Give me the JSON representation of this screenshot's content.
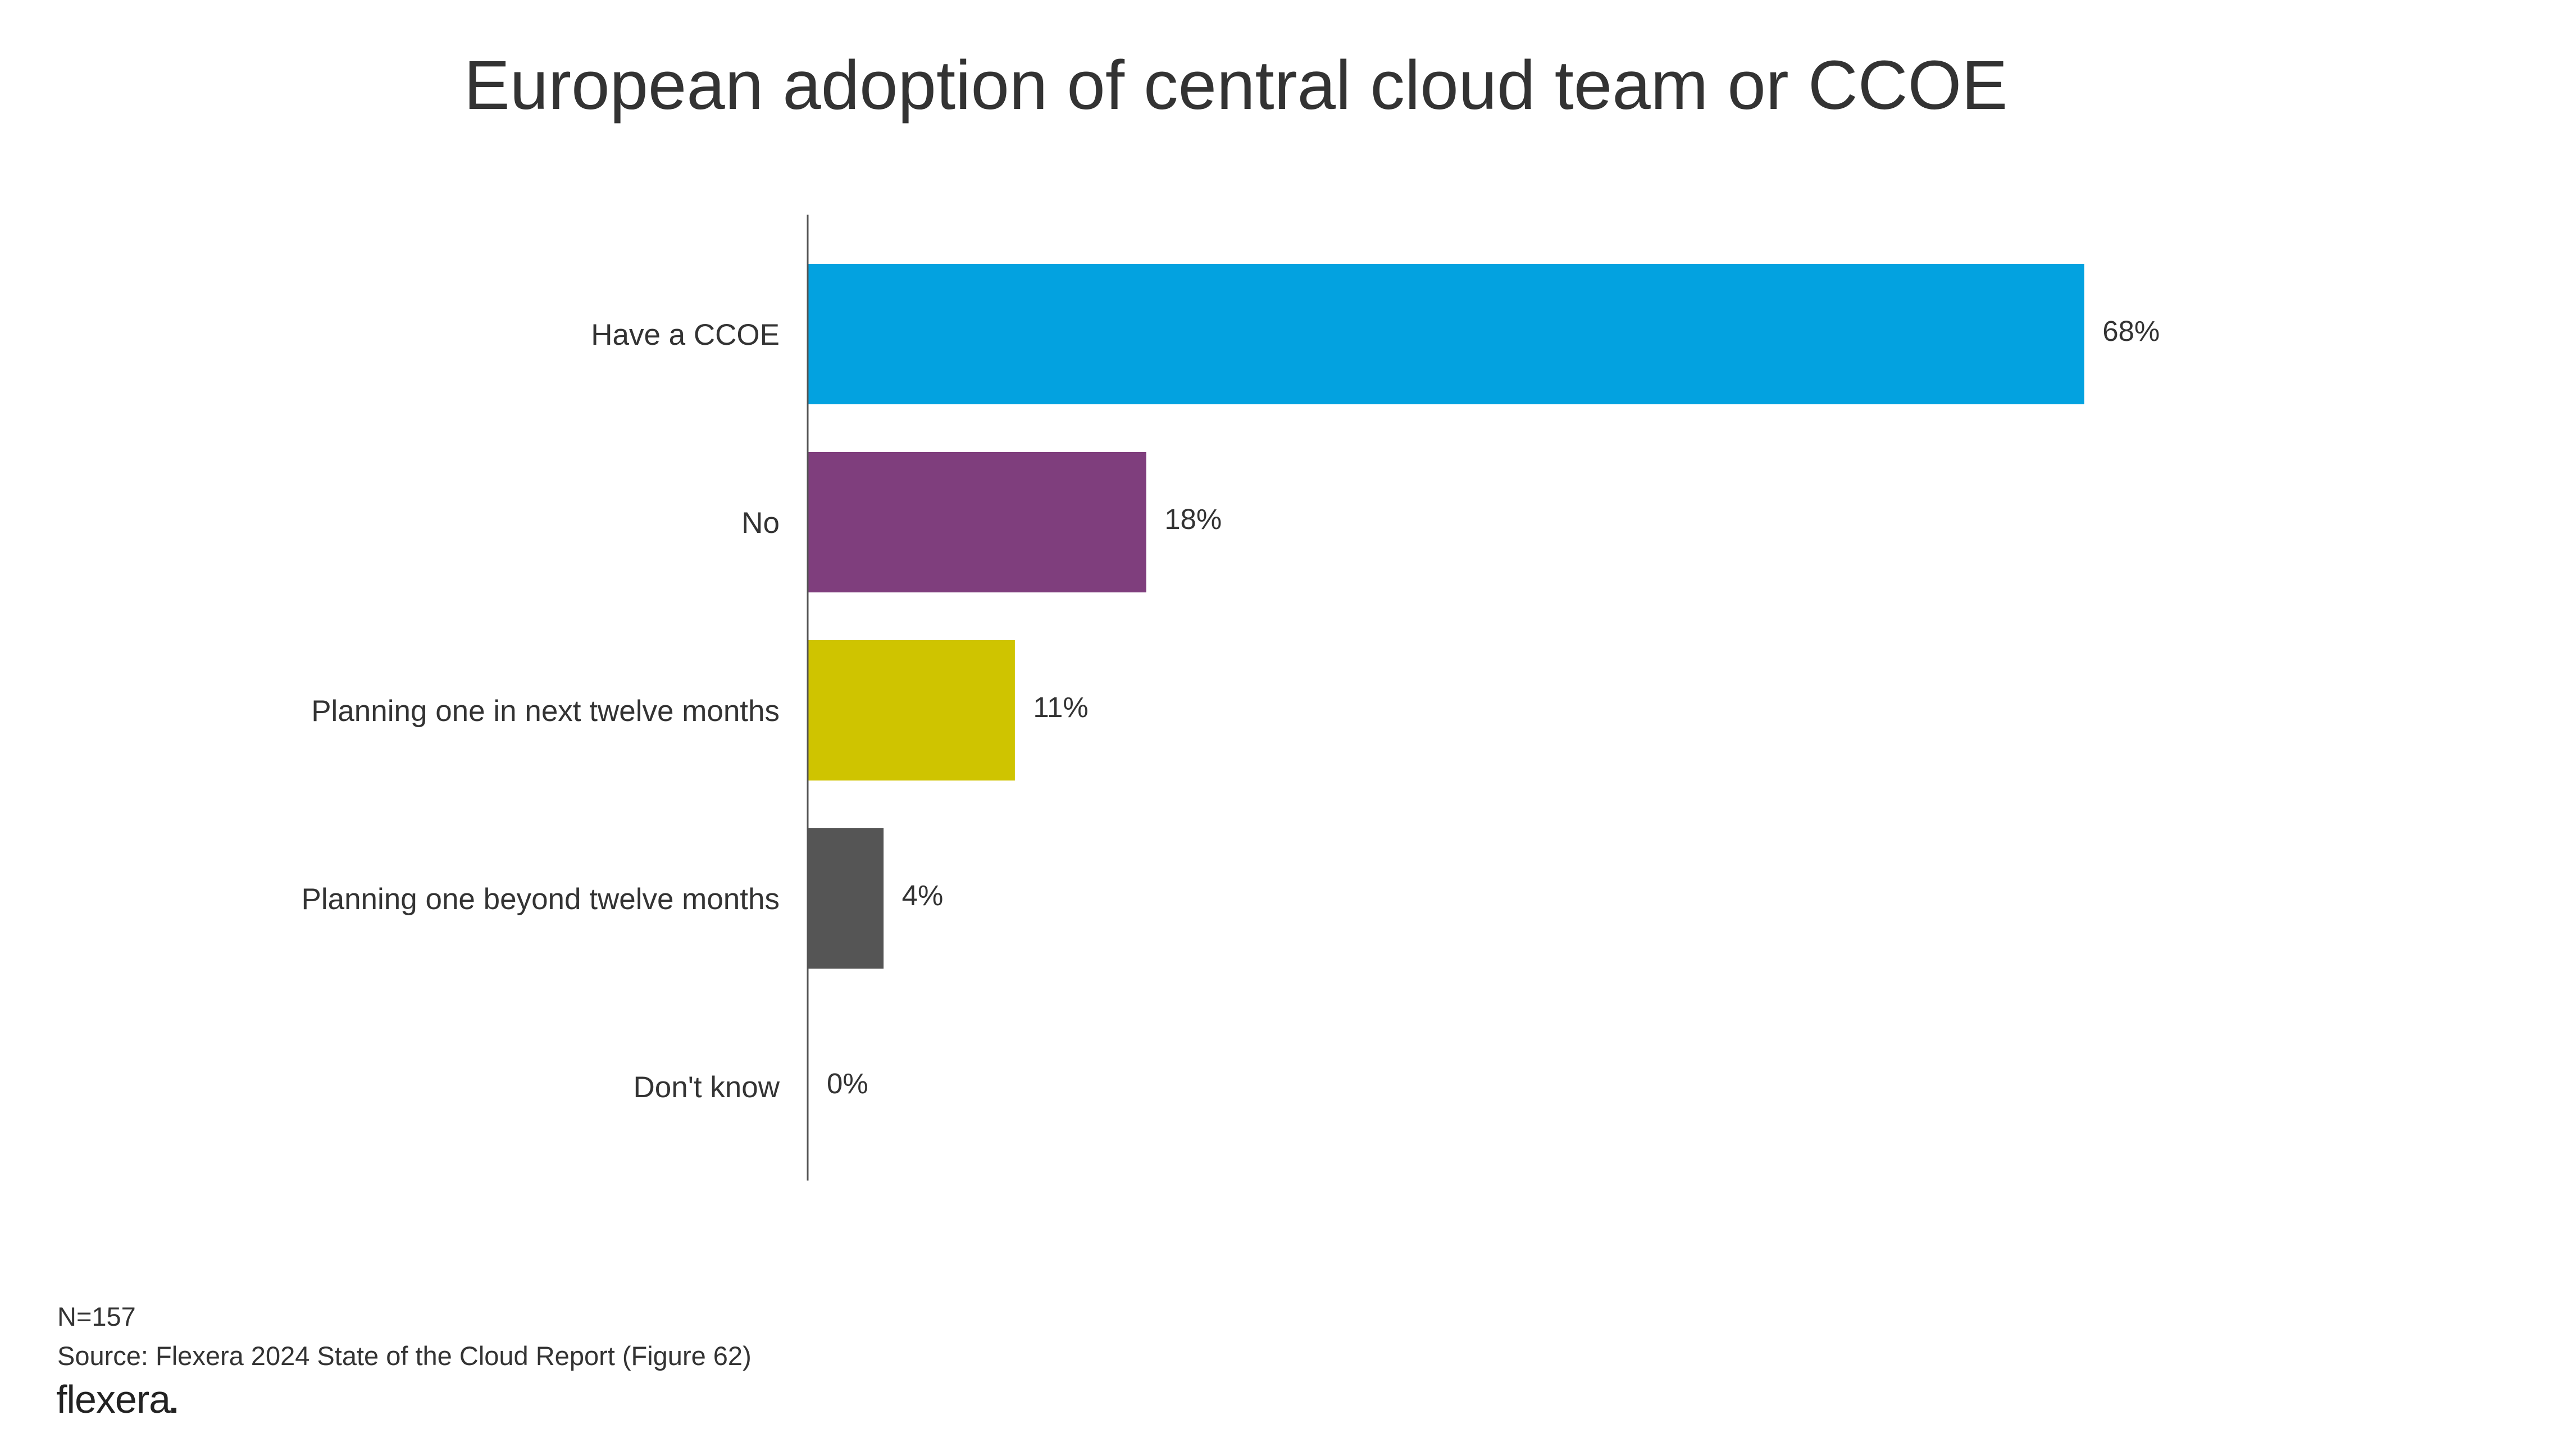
{
  "chart_data": {
    "type": "bar",
    "orientation": "horizontal",
    "title": "European adoption of central cloud team or CCOE",
    "xlabel": "",
    "ylabel": "",
    "xlim": [
      0,
      100
    ],
    "grid": false,
    "categories": [
      "Have a CCOE",
      "No",
      "Planning one in next twelve months",
      "Planning one beyond twelve months",
      "Don't know"
    ],
    "values": [
      68,
      18,
      11,
      4,
      0
    ],
    "data_labels": [
      "68%",
      "18%",
      "11%",
      "4%",
      "0%"
    ],
    "colors": [
      "#03A2E0",
      "#7F3E7D",
      "#CFC400",
      "#555555",
      "#555555"
    ]
  },
  "footer": {
    "sample": "N=157",
    "source": "Source: Flexera 2024 State of the Cloud Report (Figure 62)"
  },
  "logo": {
    "text": "flexera"
  }
}
